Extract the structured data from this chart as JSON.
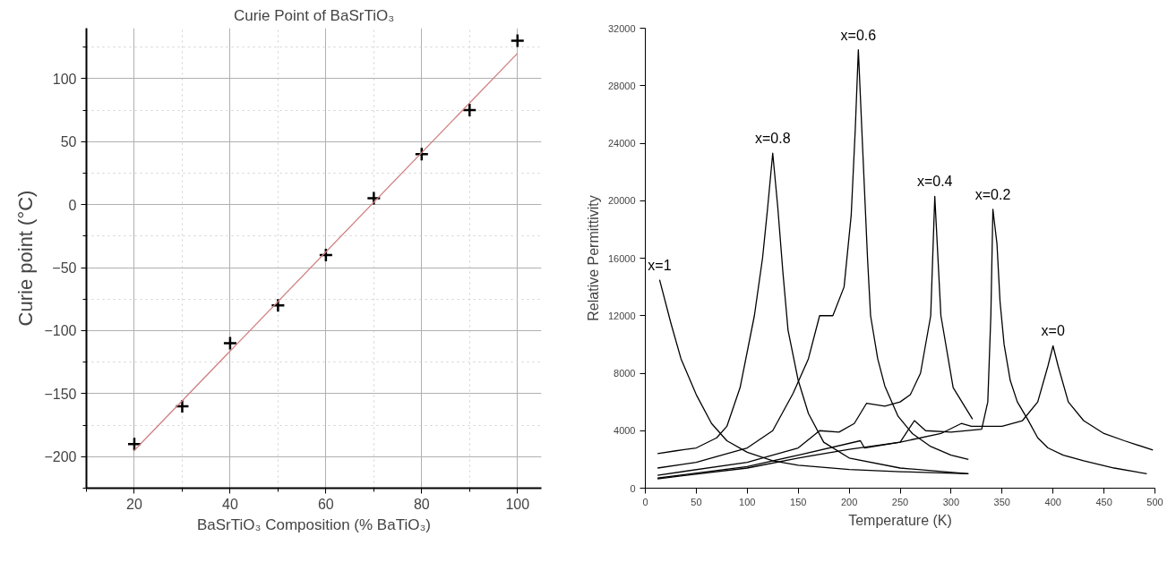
{
  "chart_data": [
    {
      "type": "scatter",
      "title": "Curie Point of BaSrTiO₃",
      "xlabel": "BaSrTiO₃ Composition (% BaTiO₃)",
      "ylabel": "Curie point (°C)",
      "xlim": [
        10,
        105
      ],
      "ylim": [
        -225,
        140
      ],
      "xticks": [
        20,
        40,
        60,
        80,
        100
      ],
      "yticks": [
        -200,
        -150,
        -100,
        -50,
        0,
        50,
        100
      ],
      "grid": true,
      "series": [
        {
          "type": "scatter",
          "marker": "cross",
          "color": "#000000",
          "x": [
            20,
            30,
            40,
            50,
            60,
            70,
            80,
            90,
            100
          ],
          "values": [
            -190,
            -160,
            -110,
            -80,
            -40,
            5,
            40,
            75,
            130
          ]
        },
        {
          "type": "line",
          "color": "#d08080",
          "x": [
            20,
            100
          ],
          "values": [
            -195,
            120
          ]
        }
      ]
    },
    {
      "type": "line",
      "xlabel": "Temperature (K)",
      "ylabel": "Relative Permittivity",
      "xlim": [
        0,
        500
      ],
      "ylim": [
        0,
        32000
      ],
      "xticks": [
        0,
        50,
        100,
        150,
        200,
        250,
        300,
        350,
        400,
        450,
        500
      ],
      "yticks": [
        0,
        4000,
        8000,
        12000,
        16000,
        20000,
        24000,
        28000,
        32000
      ],
      "grid": false,
      "line_style": "solid",
      "series": [
        {
          "name": "x=1",
          "color": "#000000",
          "x": [
            14,
            25,
            35,
            50,
            65,
            80,
            100,
            125,
            150,
            200,
            250,
            317
          ],
          "values": [
            14500,
            11500,
            9000,
            6500,
            4500,
            3300,
            2500,
            1900,
            1600,
            1300,
            1150,
            1000
          ]
        },
        {
          "name": "x=0.8",
          "color": "#000000",
          "x": [
            12,
            30,
            50,
            70,
            80,
            93,
            107,
            115,
            120,
            125,
            130,
            135,
            140,
            150,
            160,
            175,
            200,
            250,
            317
          ],
          "values": [
            2400,
            2600,
            2800,
            3500,
            4300,
            7000,
            12000,
            16000,
            19500,
            23300,
            19500,
            15000,
            11000,
            7500,
            5200,
            3200,
            2100,
            1400,
            1000
          ]
        },
        {
          "name": "x=0.6",
          "color": "#000000",
          "x": [
            12,
            50,
            100,
            125,
            145,
            160,
            171,
            184,
            195,
            202,
            206,
            209,
            213,
            218,
            221,
            228,
            235,
            248,
            262,
            280,
            300,
            317
          ],
          "values": [
            1400,
            1800,
            2800,
            4000,
            6600,
            9000,
            12000,
            12000,
            14000,
            19000,
            25000,
            30500,
            24000,
            16000,
            12000,
            9000,
            7100,
            5000,
            3800,
            2900,
            2300,
            2000
          ]
        },
        {
          "name": "x=0.4",
          "color": "#000000",
          "x": [
            12,
            100,
            150,
            171,
            190,
            205,
            217,
            235,
            250,
            260,
            270,
            280,
            284,
            290,
            302,
            321
          ],
          "values": [
            900,
            1800,
            2800,
            4000,
            3900,
            4500,
            5900,
            5700,
            6000,
            6500,
            8000,
            12000,
            20300,
            12000,
            7000,
            4800
          ]
        },
        {
          "name": "x=0.2",
          "color": "#000000",
          "x": [
            12,
            100,
            150,
            211,
            215,
            250,
            264,
            275,
            300,
            330,
            336,
            339,
            341,
            345,
            348,
            352,
            358,
            365,
            375,
            385,
            395,
            410,
            430,
            460,
            492
          ],
          "values": [
            700,
            1500,
            2300,
            3300,
            2800,
            3200,
            4700,
            4000,
            3900,
            4100,
            6000,
            12000,
            19400,
            17000,
            13000,
            10000,
            7500,
            6000,
            4800,
            3500,
            2800,
            2300,
            1900,
            1400,
            1000
          ]
        },
        {
          "name": "x=0",
          "color": "#000000",
          "x": [
            12,
            100,
            150,
            200,
            250,
            290,
            310,
            320,
            350,
            370,
            385,
            395,
            400,
            405,
            415,
            430,
            450,
            470,
            498
          ],
          "values": [
            650,
            1400,
            2100,
            2700,
            3200,
            3800,
            4500,
            4300,
            4300,
            4700,
            6000,
            8500,
            9900,
            8500,
            6000,
            4700,
            3800,
            3300,
            2650
          ]
        }
      ]
    }
  ]
}
